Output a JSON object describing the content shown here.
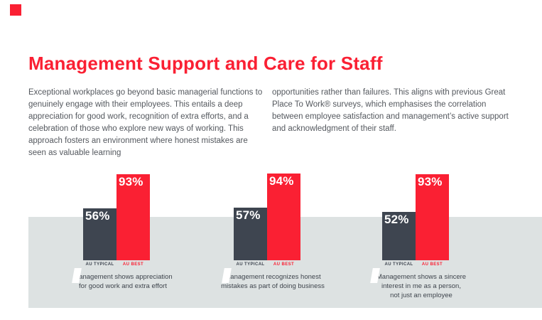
{
  "title": "Management Support and Care for Staff",
  "intro": {
    "left": "Exceptional workplaces go beyond basic managerial functions to genuinely engage with their employees. This entails a deep appreciation for good work, recognition of extra efforts, and a celebration of those who explore new ways of working. This approach fosters an environment where honest mistakes are seen as valuable learning",
    "right": "opportunities rather than failures. This aligns with previous Great Place To Work® surveys, which emphasises the correlation between employee satisfaction and management’s active support and acknowledgment of their staff."
  },
  "chart_data": [
    {
      "type": "bar",
      "categories": [
        "AU TYPICAL",
        "AU BEST"
      ],
      "values": [
        56,
        93
      ],
      "value_labels": [
        "56%",
        "93%"
      ],
      "ylim": [
        0,
        100
      ],
      "bar_colors": [
        "#3e4550",
        "#fa2033"
      ],
      "caption_lines": [
        "Management shows appreciation",
        "for good work and extra effort"
      ]
    },
    {
      "type": "bar",
      "categories": [
        "AU TYPICAL",
        "AU BEST"
      ],
      "values": [
        57,
        94
      ],
      "value_labels": [
        "57%",
        "94%"
      ],
      "ylim": [
        0,
        100
      ],
      "bar_colors": [
        "#3e4550",
        "#fa2033"
      ],
      "caption_lines": [
        "Management recognizes honest",
        "mistakes as part of doing business"
      ]
    },
    {
      "type": "bar",
      "categories": [
        "AU TYPICAL",
        "AU BEST"
      ],
      "values": [
        52,
        93
      ],
      "value_labels": [
        "52%",
        "93%"
      ],
      "ylim": [
        0,
        100
      ],
      "bar_colors": [
        "#3e4550",
        "#fa2033"
      ],
      "caption_lines": [
        "Management shows a sincere",
        "interest in me as a person,",
        "not just an employee"
      ]
    }
  ],
  "icons": {
    "brand": "red-square-mark",
    "quote": "double-quote-mark"
  },
  "colors": {
    "red": "#fa2033",
    "charcoal": "#3e4550",
    "band_gray": "#dde2e2",
    "body_text": "#54585e",
    "caption_text": "#3f454d",
    "white": "#ffffff"
  }
}
